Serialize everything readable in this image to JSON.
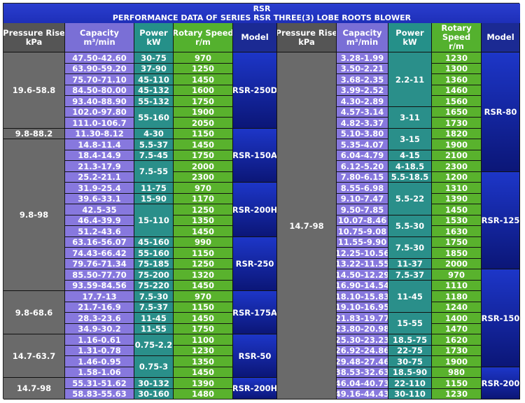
{
  "title": {
    "line1": "RSR",
    "line2": "PERFORMANCE DATA OF SERIES RSR THREE(3) LOBE ROOTS BLOWER"
  },
  "headers": {
    "pressure": [
      "Pressure Rise",
      "kPa"
    ],
    "capacity": [
      "Capacity",
      "m³/min"
    ],
    "power": [
      "Power",
      "kW"
    ],
    "speed": [
      "Rotary Speed",
      "r/m"
    ],
    "model": [
      "Model"
    ],
    "speed_right": [
      "Rotary",
      "Speed",
      "r/m"
    ]
  },
  "left": {
    "capacity": [
      "47.50-42.60",
      "63.90-59.20",
      "75.70-71.10",
      "84.50-80.00",
      "93.40-88.90",
      "102.0-97.80",
      "111.0-106.7",
      "11.30-8.12",
      "14.8-11.4",
      "18.4-14.9",
      "21.3-17.9",
      "25.2-21.1",
      "31.9-25.4",
      "39.6-33.1",
      "42.5-35",
      "46.4-39.9",
      "51.2-43.6",
      "63.16-56.07",
      "74.43-66.42",
      "79.76-71.34",
      "85.50-77.70",
      "93.59-84.56",
      "17.7-13",
      "21.7-16.9",
      "28.3-23.6",
      "34.9-30.2",
      "1.16-0.61",
      "1.31-0.78",
      "1.46-0.95",
      "1.58-1.06",
      "55.31-51.62",
      "58.83-55.63"
    ],
    "speed": [
      "970",
      "1250",
      "1450",
      "1600",
      "1750",
      "1900",
      "2050",
      "1150",
      "1450",
      "1750",
      "2000",
      "2300",
      "970",
      "1170",
      "1250",
      "1350",
      "1450",
      "990",
      "1150",
      "1250",
      "1320",
      "1450",
      "970",
      "1150",
      "1450",
      "1750",
      "1100",
      "1230",
      "1350",
      "1450",
      "1390",
      "1480"
    ],
    "pressure": [
      "19.6-58.8",
      "9.8-88.2",
      "9.8-98",
      "9.8-68.6",
      "14.7-63.7",
      "14.7-98"
    ],
    "power": [
      "30-75",
      "37-90",
      "45-110",
      "45-132",
      "55-132",
      "55-160",
      "4-30",
      "5.5-37",
      "7.5-45",
      "7.5-55",
      "11-75",
      "15-90",
      "15-110",
      "45-160",
      "55-160",
      "75-185",
      "75-200",
      "75-220",
      "7.5-30",
      "7.5-37",
      "11-45",
      "11-55",
      "0.75-2.2",
      "0.75-3",
      "30-132",
      "30-160"
    ],
    "model": [
      "RSR-250D",
      "RSR-150A",
      "RSR-200H",
      "RSR-250",
      "RSR-175A",
      "RSR-50",
      "RSR-200H"
    ]
  },
  "right": {
    "capacity": [
      "3.28-1.99",
      "3.50-2.21",
      "3.68-2.35",
      "3.99-2.52",
      "4.30-2.89",
      "4.57-3.14",
      "4.82-3.37",
      "5.10-3.80",
      "5.35-4.07",
      "6.04-4.79",
      "6.12-5.20",
      "7.80-6.15",
      "8.55-6.98",
      "9.10-7.47",
      "9.50-7.85",
      "10.07-8.46",
      "10.75-9.08",
      "11.55-9.90",
      "12.25-10.56",
      "13.22-11.55",
      "14.50-12.29",
      "16.90-14.54",
      "18.10-15.83",
      "19.10-16.95",
      "21.83-19.77",
      "23.80-20.98",
      "25.30-23.23",
      "26.92-24.86",
      "29.48-27.46",
      "38.53-32.63",
      "46.04-40.73",
      "49.16-44.43"
    ],
    "speed": [
      "1230",
      "1300",
      "1360",
      "1460",
      "1560",
      "1650",
      "1730",
      "1820",
      "1900",
      "2100",
      "2300",
      "1200",
      "1310",
      "1390",
      "1450",
      "1530",
      "1630",
      "1750",
      "1850",
      "2000",
      "970",
      "1110",
      "1180",
      "1240",
      "1400",
      "1470",
      "1620",
      "1730",
      "1900",
      "980",
      "1150",
      "1230"
    ],
    "pressure": [
      "14.7-98"
    ],
    "power": [
      "2.2-11",
      "3-11",
      "3-15",
      "4-15",
      "4-18.5",
      "5.5-18.5",
      "5.5-22",
      "5.5-30",
      "7.5-30",
      "11-37",
      "7.5-37",
      "11-45",
      "15-55",
      "18.5-75",
      "22-75",
      "30-75",
      "18.5-90",
      "22-110",
      "30-110"
    ],
    "model": [
      "RSR-80",
      "RSR-125",
      "RSR-150",
      "RSR-200"
    ]
  }
}
